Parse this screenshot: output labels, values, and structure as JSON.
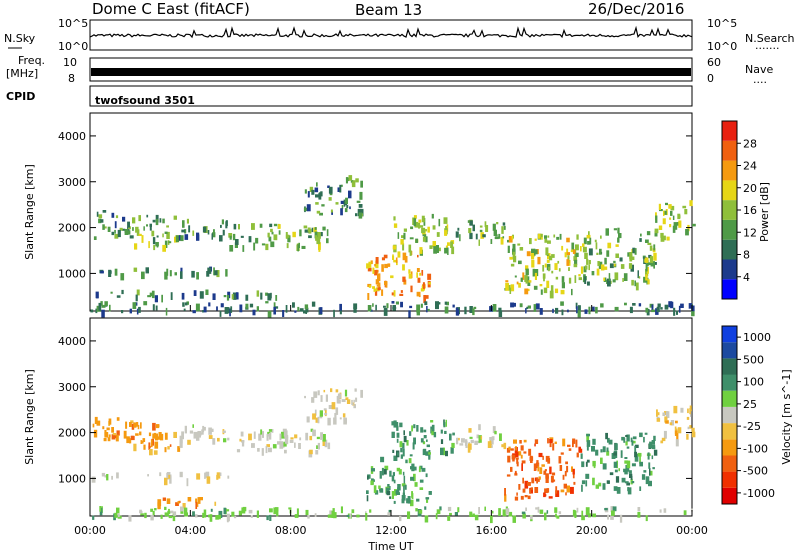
{
  "header": {
    "station": "Dome C East (fitACF)",
    "beam": "Beam 13",
    "date": "26/Dec/2016"
  },
  "nsky": {
    "label": "N.Sky",
    "top_tick": "10^5",
    "bottom_tick": "10^0",
    "right_top_tick": "10^5",
    "right_bottom_tick": "10^0",
    "right_label": "N.Search",
    "right_dots": "·······"
  },
  "freq": {
    "label_line1": "Freq.",
    "label_line2": "[MHz]",
    "top_tick": "10",
    "bottom_tick": "8",
    "right_top_tick": "60",
    "right_bottom_tick": "0",
    "right_label": "Nave",
    "right_dots": "····"
  },
  "cpid": {
    "label": "CPID",
    "program": "twofsound 3501"
  },
  "colors": {
    "power_scale": [
      "#0000ff",
      "#1c3a8c",
      "#2f6e55",
      "#4f9a47",
      "#8fbf3a",
      "#e6d616",
      "#f59a10",
      "#f06010",
      "#e82010"
    ],
    "velocity_scale": [
      "#e00000",
      "#f03000",
      "#f06010",
      "#f59a10",
      "#f0c040",
      "#c8c8c0",
      "#70d040",
      "#3f8f6a",
      "#2f6e55",
      "#1c4aa0",
      "#1040e0"
    ]
  },
  "chart_data": [
    {
      "type": "heatmap",
      "name": "power",
      "ylabel": "Slant Range [km]",
      "xlabel": "",
      "x_ticks": [
        "00:00",
        "04:00",
        "08:00",
        "12:00",
        "16:00",
        "20:00",
        "00:00"
      ],
      "x_range_hours": [
        0,
        24
      ],
      "y_ticks": [
        1000,
        2000,
        3000,
        4000
      ],
      "ylim": [
        180,
        4500
      ],
      "colorbar": {
        "label": "Power [dB]",
        "ticks": [
          4,
          8,
          12,
          16,
          20,
          24,
          28
        ],
        "range": [
          0,
          32
        ]
      },
      "echo_regions": [
        {
          "t0": 0.1,
          "t1": 1.5,
          "r0": 1800,
          "r1": 2400,
          "level": 0.35
        },
        {
          "t0": 1.5,
          "t1": 3.5,
          "r0": 1600,
          "r1": 2300,
          "level": 0.45
        },
        {
          "t0": 3.5,
          "t1": 5.5,
          "r0": 1800,
          "r1": 2200,
          "level": 0.3
        },
        {
          "t0": 5.5,
          "t1": 9.5,
          "r0": 1600,
          "r1": 2100,
          "level": 0.4
        },
        {
          "t0": 8.5,
          "t1": 10.8,
          "r0": 2300,
          "r1": 3000,
          "level": 0.3
        },
        {
          "t0": 10.2,
          "t1": 10.8,
          "r0": 3000,
          "r1": 3200,
          "level": 0.5
        },
        {
          "t0": 0.0,
          "t1": 5.5,
          "r0": 1000,
          "r1": 1150,
          "level": 0.3
        },
        {
          "t0": 0.0,
          "t1": 7.5,
          "r0": 500,
          "r1": 650,
          "level": 0.3
        },
        {
          "t0": 11.0,
          "t1": 13.5,
          "r0": 500,
          "r1": 1500,
          "level": 0.75
        },
        {
          "t0": 12.0,
          "t1": 14.5,
          "r0": 1500,
          "r1": 2300,
          "level": 0.5
        },
        {
          "t0": 14.5,
          "t1": 16.5,
          "r0": 1700,
          "r1": 2200,
          "level": 0.4
        },
        {
          "t0": 16.5,
          "t1": 19.5,
          "r0": 600,
          "r1": 1900,
          "level": 0.55
        },
        {
          "t0": 19.5,
          "t1": 22.5,
          "r0": 800,
          "r1": 2000,
          "level": 0.45
        },
        {
          "t0": 22.5,
          "t1": 24.0,
          "r0": 1800,
          "r1": 2600,
          "level": 0.5
        },
        {
          "t0": 0.0,
          "t1": 24.0,
          "r0": 180,
          "r1": 400,
          "level": 0.25
        }
      ]
    },
    {
      "type": "heatmap",
      "name": "velocity",
      "ylabel": "Slant Range [km]",
      "xlabel": "Time UT",
      "x_ticks": [
        "00:00",
        "04:00",
        "08:00",
        "12:00",
        "16:00",
        "20:00",
        "00:00"
      ],
      "x_range_hours": [
        0,
        24
      ],
      "y_ticks": [
        1000,
        2000,
        3000,
        4000
      ],
      "ylim": [
        180,
        4500
      ],
      "colorbar": {
        "label": "Velocity [m s^-1]",
        "ticks": [
          1000,
          500,
          100,
          25,
          -25,
          -100,
          -500,
          -1000
        ],
        "tick_labels": [
          "1000",
          "500",
          "100",
          "25",
          "-25",
          "-100",
          "-500",
          "-1000"
        ]
      },
      "echo_regions": [
        {
          "t0": 0.1,
          "t1": 1.5,
          "r0": 1800,
          "r1": 2400,
          "class": 3
        },
        {
          "t0": 1.5,
          "t1": 3.5,
          "r0": 1600,
          "r1": 2300,
          "class": 3
        },
        {
          "t0": 3.5,
          "t1": 5.5,
          "r0": 1800,
          "r1": 2200,
          "class": 5
        },
        {
          "t0": 5.5,
          "t1": 9.5,
          "r0": 1600,
          "r1": 2100,
          "class": 5
        },
        {
          "t0": 8.5,
          "t1": 10.8,
          "r0": 2300,
          "r1": 3000,
          "class": 5
        },
        {
          "t0": 0.0,
          "t1": 5.5,
          "r0": 1000,
          "r1": 1150,
          "class": 5
        },
        {
          "t0": 1.5,
          "t1": 5.0,
          "r0": 450,
          "r1": 600,
          "class": 3
        },
        {
          "t0": 11.0,
          "t1": 13.5,
          "r0": 500,
          "r1": 1500,
          "class": 7
        },
        {
          "t0": 12.0,
          "t1": 14.5,
          "r0": 1500,
          "r1": 2300,
          "class": 7
        },
        {
          "t0": 14.5,
          "t1": 16.5,
          "r0": 1700,
          "r1": 2200,
          "class": 5
        },
        {
          "t0": 16.5,
          "t1": 19.5,
          "r0": 600,
          "r1": 1900,
          "class": 2
        },
        {
          "t0": 19.5,
          "t1": 22.5,
          "r0": 800,
          "r1": 2000,
          "class": 7
        },
        {
          "t0": 22.5,
          "t1": 24.0,
          "r0": 1800,
          "r1": 2600,
          "class": 4
        },
        {
          "t0": 0.0,
          "t1": 24.0,
          "r0": 180,
          "r1": 400,
          "class": 6
        }
      ]
    }
  ]
}
